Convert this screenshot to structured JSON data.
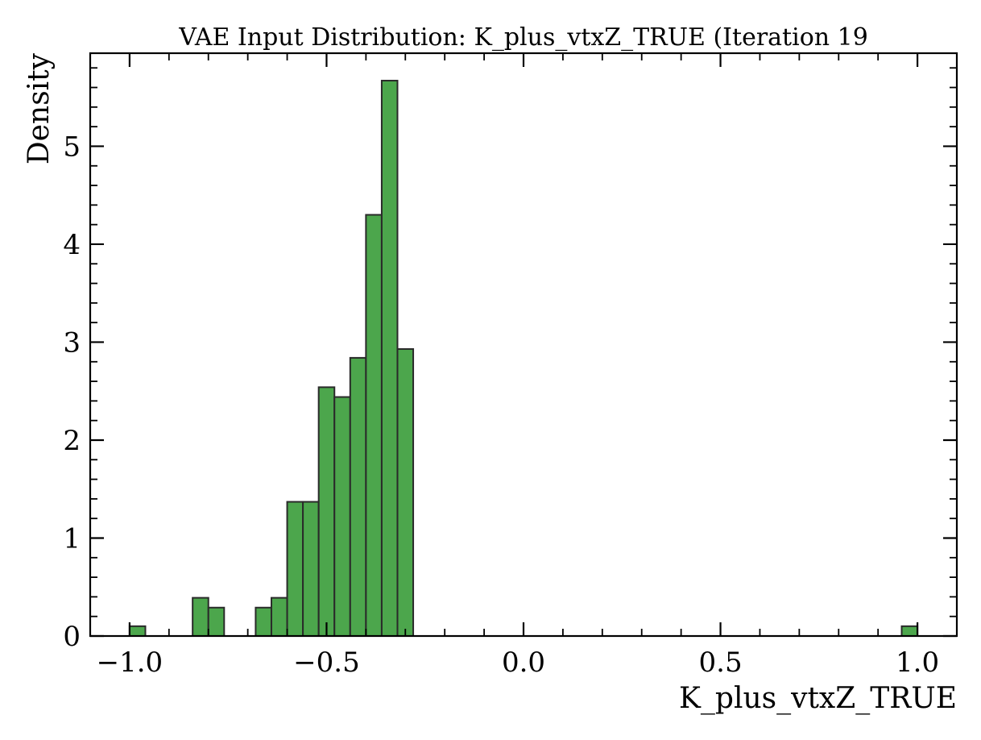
{
  "chart_data": {
    "type": "bar",
    "title": "VAE Input Distribution: K_plus_vtxZ_TRUE (Iteration 19",
    "xlabel": "K_plus_vtxZ_TRUE",
    "ylabel": "Density",
    "xlim": [
      -1.1,
      1.1
    ],
    "ylim": [
      0,
      5.95
    ],
    "xticks": [
      -1.0,
      -0.5,
      0.0,
      0.5,
      1.0
    ],
    "xtick_labels": [
      "−1.0",
      "−0.5",
      "0.0",
      "0.5",
      "1.0"
    ],
    "yticks": [
      0,
      1,
      2,
      3,
      4,
      5
    ],
    "ytick_labels": [
      "0",
      "1",
      "2",
      "3",
      "4",
      "5"
    ],
    "grid": false,
    "bar_color": "#4ca64c",
    "edge_color": "#2a2a2a",
    "bins": [
      {
        "x0": -1.0,
        "x1": -0.96,
        "value": 0.1
      },
      {
        "x0": -0.84,
        "x1": -0.8,
        "value": 0.39
      },
      {
        "x0": -0.8,
        "x1": -0.76,
        "value": 0.29
      },
      {
        "x0": -0.68,
        "x1": -0.64,
        "value": 0.29
      },
      {
        "x0": -0.64,
        "x1": -0.6,
        "value": 0.39
      },
      {
        "x0": -0.6,
        "x1": -0.56,
        "value": 1.37
      },
      {
        "x0": -0.56,
        "x1": -0.52,
        "value": 1.37
      },
      {
        "x0": -0.52,
        "x1": -0.48,
        "value": 2.54
      },
      {
        "x0": -0.48,
        "x1": -0.44,
        "value": 2.44
      },
      {
        "x0": -0.44,
        "x1": -0.4,
        "value": 2.84
      },
      {
        "x0": -0.4,
        "x1": -0.36,
        "value": 4.3
      },
      {
        "x0": -0.36,
        "x1": -0.32,
        "value": 5.67
      },
      {
        "x0": -0.32,
        "x1": -0.28,
        "value": 2.93
      },
      {
        "x0": 0.96,
        "x1": 1.0,
        "value": 0.1
      }
    ]
  }
}
